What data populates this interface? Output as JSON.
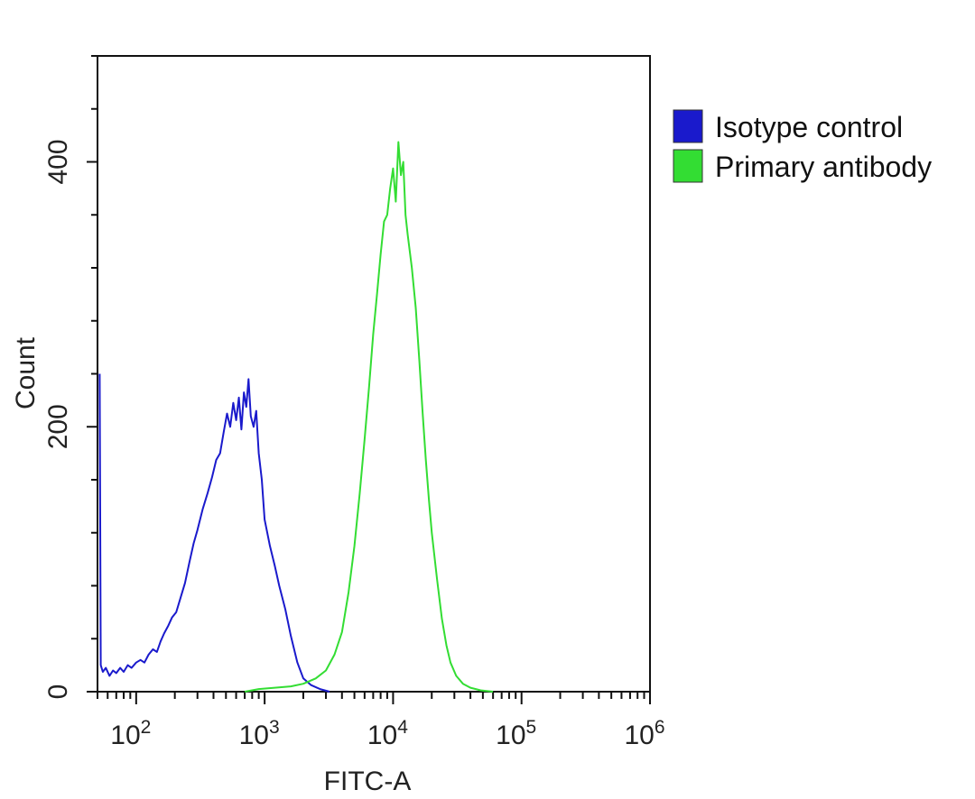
{
  "chart_data": {
    "type": "line",
    "xlabel": "FITC-A",
    "ylabel": "Count",
    "xscale": "log",
    "xlim": [
      50,
      1000000
    ],
    "ylim": [
      0,
      480
    ],
    "x_ticks": [
      {
        "value": 100,
        "base": "10",
        "exp": "2"
      },
      {
        "value": 1000,
        "base": "10",
        "exp": "3"
      },
      {
        "value": 10000,
        "base": "10",
        "exp": "4"
      },
      {
        "value": 100000,
        "base": "10",
        "exp": "5"
      },
      {
        "value": 1000000,
        "base": "10",
        "exp": "6"
      }
    ],
    "y_ticks": [
      {
        "value": 0,
        "label": "0"
      },
      {
        "value": 200,
        "label": "200"
      },
      {
        "value": 400,
        "label": "400"
      }
    ],
    "legend_position": "right",
    "series": [
      {
        "name": "Isotype control",
        "color": "#1a1acc",
        "points": [
          [
            52,
            240
          ],
          [
            53,
            20
          ],
          [
            55,
            15
          ],
          [
            58,
            18
          ],
          [
            62,
            12
          ],
          [
            66,
            16
          ],
          [
            70,
            14
          ],
          [
            75,
            18
          ],
          [
            80,
            15
          ],
          [
            86,
            20
          ],
          [
            92,
            18
          ],
          [
            100,
            22
          ],
          [
            108,
            24
          ],
          [
            116,
            22
          ],
          [
            125,
            28
          ],
          [
            135,
            32
          ],
          [
            145,
            30
          ],
          [
            155,
            38
          ],
          [
            165,
            44
          ],
          [
            178,
            50
          ],
          [
            190,
            56
          ],
          [
            205,
            60
          ],
          [
            220,
            70
          ],
          [
            240,
            82
          ],
          [
            260,
            98
          ],
          [
            280,
            112
          ],
          [
            300,
            122
          ],
          [
            330,
            138
          ],
          [
            360,
            150
          ],
          [
            390,
            162
          ],
          [
            420,
            175
          ],
          [
            450,
            180
          ],
          [
            480,
            196
          ],
          [
            510,
            210
          ],
          [
            540,
            200
          ],
          [
            570,
            218
          ],
          [
            600,
            205
          ],
          [
            630,
            222
          ],
          [
            660,
            198
          ],
          [
            690,
            226
          ],
          [
            720,
            215
          ],
          [
            750,
            236
          ],
          [
            780,
            208
          ],
          [
            820,
            200
          ],
          [
            860,
            212
          ],
          [
            900,
            180
          ],
          [
            950,
            160
          ],
          [
            1000,
            130
          ],
          [
            1100,
            110
          ],
          [
            1200,
            95
          ],
          [
            1300,
            80
          ],
          [
            1450,
            62
          ],
          [
            1600,
            42
          ],
          [
            1800,
            22
          ],
          [
            2000,
            10
          ],
          [
            2300,
            5
          ],
          [
            2700,
            2
          ],
          [
            3200,
            0
          ]
        ]
      },
      {
        "name": "Primary antibody",
        "color": "#33dd33",
        "points": [
          [
            700,
            0
          ],
          [
            900,
            2
          ],
          [
            1200,
            3
          ],
          [
            1600,
            4
          ],
          [
            2000,
            6
          ],
          [
            2500,
            10
          ],
          [
            3000,
            16
          ],
          [
            3500,
            28
          ],
          [
            4000,
            45
          ],
          [
            4500,
            75
          ],
          [
            5000,
            110
          ],
          [
            5500,
            150
          ],
          [
            6000,
            190
          ],
          [
            6500,
            230
          ],
          [
            7000,
            270
          ],
          [
            7500,
            300
          ],
          [
            8000,
            330
          ],
          [
            8500,
            355
          ],
          [
            9000,
            360
          ],
          [
            9500,
            380
          ],
          [
            10000,
            395
          ],
          [
            10500,
            370
          ],
          [
            11000,
            415
          ],
          [
            11500,
            390
          ],
          [
            12000,
            400
          ],
          [
            12500,
            360
          ],
          [
            13000,
            345
          ],
          [
            14000,
            320
          ],
          [
            15000,
            290
          ],
          [
            16000,
            250
          ],
          [
            17000,
            210
          ],
          [
            18000,
            175
          ],
          [
            19000,
            145
          ],
          [
            20000,
            120
          ],
          [
            22000,
            85
          ],
          [
            24000,
            55
          ],
          [
            26000,
            35
          ],
          [
            28000,
            22
          ],
          [
            31000,
            12
          ],
          [
            35000,
            6
          ],
          [
            40000,
            3
          ],
          [
            48000,
            1
          ],
          [
            60000,
            0
          ]
        ]
      }
    ]
  }
}
